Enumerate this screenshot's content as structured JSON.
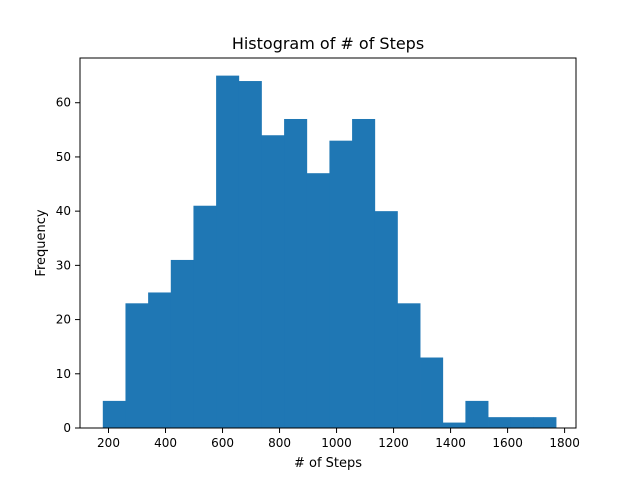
{
  "chart_data": {
    "type": "bar",
    "title": "Histogram of # of Steps",
    "xlabel": "# of Steps",
    "ylabel": "Frequency",
    "bar_color": "#1f77b4",
    "xlim": [
      100,
      1840
    ],
    "ylim": [
      0,
      68.25
    ],
    "xticks": [
      200,
      400,
      600,
      800,
      1000,
      1200,
      1400,
      1600,
      1800
    ],
    "yticks": [
      0,
      10,
      20,
      30,
      40,
      50,
      60
    ],
    "bin_start": 180,
    "bin_width": 79.5,
    "counts": [
      5,
      23,
      25,
      31,
      41,
      65,
      64,
      54,
      57,
      47,
      53,
      57,
      40,
      23,
      13,
      1,
      5,
      2,
      2,
      2
    ],
    "grid": false,
    "legend": "none"
  }
}
